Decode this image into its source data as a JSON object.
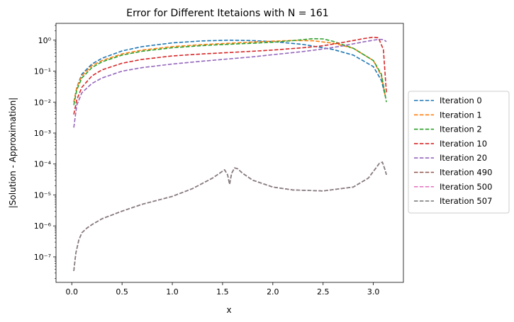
{
  "chart_data": {
    "type": "line",
    "title": "Error for Different Itetaions with N = 161",
    "xlabel": "x",
    "ylabel": "|Solution - Approximation|",
    "xlim": [
      -0.157,
      3.299
    ],
    "ylim": [
      1.5e-08,
      3.5
    ],
    "yscale": "log",
    "xticks": [
      0.0,
      0.5,
      1.0,
      1.5,
      2.0,
      2.5,
      3.0
    ],
    "xtick_labels": [
      "0.0",
      "0.5",
      "1.0",
      "1.5",
      "2.0",
      "2.5",
      "3.0"
    ],
    "yticks": [
      1e-07,
      1e-06,
      1e-05,
      0.0001,
      0.001,
      0.01,
      0.1,
      1
    ],
    "ytick_labels": [
      "10⁻⁷",
      "10⁻⁶",
      "10⁻⁵",
      "10⁻⁴",
      "10⁻³",
      "10⁻²",
      "10⁻¹",
      "10⁰"
    ],
    "grid": false,
    "legend_placement": "outside right, center",
    "line_style": "dashed",
    "series": [
      {
        "name": "Iteration 0",
        "color": "#1f77b4",
        "x": [
          0.02,
          0.05,
          0.1,
          0.2,
          0.3,
          0.5,
          0.7,
          1.0,
          1.3,
          1.57,
          1.8,
          2.0,
          2.3,
          2.6,
          2.8,
          3.0,
          3.08,
          3.12
        ],
        "y": [
          0.01,
          0.03,
          0.08,
          0.17,
          0.26,
          0.45,
          0.62,
          0.82,
          0.95,
          1.0,
          0.97,
          0.9,
          0.73,
          0.5,
          0.33,
          0.14,
          0.05,
          0.015
        ]
      },
      {
        "name": "Iteration 1",
        "color": "#ff7f0e",
        "x": [
          0.02,
          0.05,
          0.1,
          0.2,
          0.3,
          0.5,
          0.7,
          1.0,
          1.3,
          1.57,
          1.8,
          2.0,
          2.2,
          2.4,
          2.6,
          2.8,
          3.0,
          3.08,
          3.12
        ],
        "y": [
          0.01,
          0.03,
          0.07,
          0.15,
          0.22,
          0.36,
          0.48,
          0.62,
          0.72,
          0.8,
          0.87,
          0.93,
          0.98,
          0.96,
          0.8,
          0.55,
          0.22,
          0.07,
          0.015
        ]
      },
      {
        "name": "Iteration 2",
        "color": "#2ca02c",
        "x": [
          0.02,
          0.05,
          0.1,
          0.2,
          0.3,
          0.5,
          0.7,
          1.0,
          1.3,
          1.57,
          1.8,
          2.0,
          2.2,
          2.4,
          2.5,
          2.6,
          2.8,
          3.0,
          3.08,
          3.13
        ],
        "y": [
          0.008,
          0.025,
          0.06,
          0.13,
          0.2,
          0.33,
          0.44,
          0.57,
          0.67,
          0.74,
          0.8,
          0.86,
          0.97,
          1.12,
          1.1,
          0.92,
          0.55,
          0.22,
          0.08,
          0.01
        ]
      },
      {
        "name": "Iteration 10",
        "color": "#d62728",
        "x": [
          0.02,
          0.05,
          0.1,
          0.2,
          0.3,
          0.5,
          0.7,
          1.0,
          1.3,
          1.57,
          1.8,
          2.0,
          2.3,
          2.5,
          2.7,
          2.9,
          3.0,
          3.05,
          3.1,
          3.13
        ],
        "y": [
          0.004,
          0.012,
          0.03,
          0.07,
          0.11,
          0.18,
          0.24,
          0.31,
          0.36,
          0.4,
          0.44,
          0.48,
          0.57,
          0.66,
          0.85,
          1.12,
          1.25,
          1.2,
          0.5,
          0.02
        ]
      },
      {
        "name": "Iteration 20",
        "color": "#9467bd",
        "x": [
          0.02,
          0.05,
          0.1,
          0.2,
          0.3,
          0.5,
          0.7,
          1.0,
          1.3,
          1.57,
          1.8,
          2.0,
          2.3,
          2.5,
          2.7,
          2.9,
          3.0,
          3.05,
          3.1,
          3.13
        ],
        "y": [
          0.0015,
          0.008,
          0.02,
          0.04,
          0.06,
          0.1,
          0.13,
          0.17,
          0.21,
          0.25,
          0.29,
          0.34,
          0.43,
          0.52,
          0.66,
          0.88,
          1.0,
          1.06,
          1.05,
          0.9
        ]
      },
      {
        "name": "Iteration 490",
        "color": "#8c564b",
        "x": [
          0.02,
          0.04,
          0.07,
          0.1,
          0.15,
          0.2,
          0.3,
          0.5,
          0.7,
          1.0,
          1.2,
          1.4,
          1.52,
          1.55,
          1.57,
          1.59,
          1.62,
          1.65,
          1.7,
          1.8,
          2.0,
          2.2,
          2.5,
          2.8,
          2.95,
          3.02,
          3.06,
          3.09,
          3.12,
          3.13
        ],
        "y": [
          3.5e-08,
          1.3e-07,
          3.5e-07,
          6e-07,
          8.5e-07,
          1.1e-06,
          1.7e-06,
          3e-06,
          5e-06,
          9e-06,
          1.6e-05,
          3.5e-05,
          6.5e-05,
          4.5e-05,
          2.2e-05,
          5e-05,
          7.5e-05,
          7e-05,
          5e-05,
          3e-05,
          1.8e-05,
          1.45e-05,
          1.35e-05,
          1.8e-05,
          3.5e-05,
          7e-05,
          0.000105,
          0.000115,
          6e-05,
          4.5e-05
        ]
      },
      {
        "name": "Iteration 500",
        "color": "#e377c2",
        "x": [
          0.02,
          0.04,
          0.07,
          0.1,
          0.15,
          0.2,
          0.3,
          0.5,
          0.7,
          1.0,
          1.2,
          1.4,
          1.52,
          1.55,
          1.57,
          1.59,
          1.62,
          1.65,
          1.7,
          1.8,
          2.0,
          2.2,
          2.5,
          2.8,
          2.95,
          3.02,
          3.06,
          3.09,
          3.12,
          3.13
        ],
        "y": [
          3.5e-08,
          1.3e-07,
          3.5e-07,
          6e-07,
          8.5e-07,
          1.1e-06,
          1.7e-06,
          3e-06,
          5e-06,
          9e-06,
          1.6e-05,
          3.5e-05,
          6.5e-05,
          4.5e-05,
          2.2e-05,
          5e-05,
          7.5e-05,
          7e-05,
          5e-05,
          3e-05,
          1.8e-05,
          1.45e-05,
          1.35e-05,
          1.8e-05,
          3.5e-05,
          7e-05,
          0.000105,
          0.000115,
          6e-05,
          4.5e-05
        ]
      },
      {
        "name": "Iteration 507",
        "color": "#7f7f7f",
        "x": [
          0.02,
          0.04,
          0.07,
          0.1,
          0.15,
          0.2,
          0.3,
          0.5,
          0.7,
          1.0,
          1.2,
          1.4,
          1.52,
          1.55,
          1.57,
          1.59,
          1.62,
          1.65,
          1.7,
          1.8,
          2.0,
          2.2,
          2.5,
          2.8,
          2.95,
          3.02,
          3.06,
          3.09,
          3.12,
          3.13
        ],
        "y": [
          3.5e-08,
          1.3e-07,
          3.5e-07,
          6e-07,
          8.5e-07,
          1.1e-06,
          1.7e-06,
          3e-06,
          5e-06,
          9e-06,
          1.6e-05,
          3.5e-05,
          6.5e-05,
          4.5e-05,
          2.2e-05,
          5e-05,
          7.5e-05,
          7e-05,
          5e-05,
          3e-05,
          1.8e-05,
          1.45e-05,
          1.35e-05,
          1.8e-05,
          3.5e-05,
          7e-05,
          0.000105,
          0.000115,
          6e-05,
          4.5e-05
        ]
      }
    ]
  }
}
